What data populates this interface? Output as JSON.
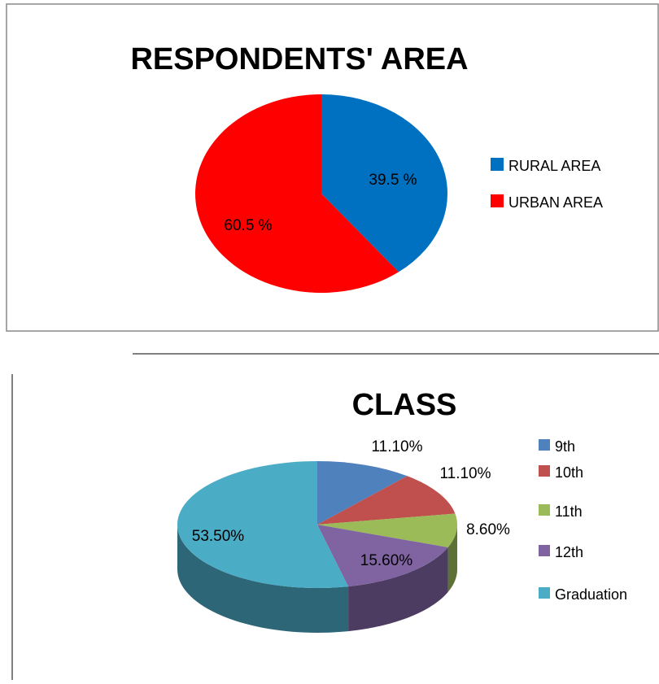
{
  "chart_data": [
    {
      "type": "pie",
      "title": "RESPONDENTS' AREA",
      "categories": [
        "RURAL AREA",
        "URBAN AREA"
      ],
      "values": [
        39.5,
        60.5
      ],
      "value_labels": [
        "39.5  %",
        "60.5  %"
      ],
      "colors": [
        "#0070c0",
        "#ff0000"
      ],
      "legend": "right"
    },
    {
      "type": "pie3d",
      "title": "CLASS",
      "categories": [
        "9th",
        "10th",
        "11th",
        "12th",
        "Graduation"
      ],
      "values": [
        11.1,
        11.1,
        8.6,
        15.6,
        53.5
      ],
      "value_labels": [
        "11.10%",
        "11.10%",
        "8.60%",
        "15.60%",
        "53.50%"
      ],
      "colors": [
        "#4f81bd",
        "#c0504d",
        "#9bbb59",
        "#8064a2",
        "#4bacc6"
      ],
      "legend": "right"
    }
  ]
}
